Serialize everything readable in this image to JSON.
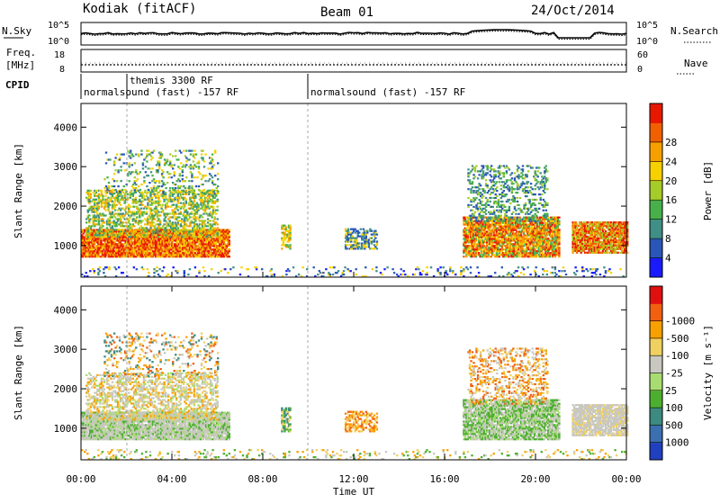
{
  "header": {
    "station": "Kodiak (fitACF)",
    "beam": "Beam 01",
    "date": "24/Oct/2014"
  },
  "top_panel": {
    "left_label": "N.Sky",
    "right_label": "N.Search",
    "left_ticks": [
      "10^5",
      "10^0"
    ],
    "right_ticks": [
      "10^5",
      "10^0"
    ]
  },
  "freq_panel": {
    "left_label_1": "Freq.",
    "left_label_2": "[MHz]",
    "right_label": "Nave",
    "left_ticks": [
      "18",
      "8"
    ],
    "right_ticks": [
      "60",
      "0"
    ]
  },
  "cpid_panel": {
    "label": "CPID",
    "modes": [
      {
        "text": "normalsound (fast) -157 RF",
        "start_hour": 0
      },
      {
        "text": "themis 3300 RF",
        "start_hour": 2
      },
      {
        "text": "normalsound (fast) -157 RF",
        "start_hour": 10
      }
    ]
  },
  "chart_data": [
    {
      "type": "heatmap",
      "ylabel": "Slant Range [km]",
      "yticks": [
        1000,
        2000,
        3000,
        4000
      ],
      "ylim": [
        200,
        4600
      ],
      "xlim": [
        0,
        24
      ],
      "colorbar": {
        "label": "Power [dB]",
        "ticks": [
          "4",
          "8",
          "12",
          "16",
          "20",
          "24",
          "28"
        ],
        "colors": [
          "#1a1aff",
          "#2956b8",
          "#3f8f86",
          "#48b04a",
          "#a6cc2a",
          "#f7d000",
          "#f6a000",
          "#f06000",
          "#e81800"
        ]
      }
    },
    {
      "type": "heatmap",
      "ylabel": "Slant Range [km]",
      "yticks": [
        1000,
        2000,
        3000,
        4000
      ],
      "ylim": [
        200,
        4600
      ],
      "xlim": [
        0,
        24
      ],
      "xlabel": "Time UT",
      "xticks": [
        "00:00",
        "04:00",
        "08:00",
        "12:00",
        "16:00",
        "20:00",
        "00:00"
      ],
      "colorbar": {
        "label": "Velocity [m s⁻¹]",
        "ticks": [
          "1000",
          "500",
          "100",
          "25",
          "-25",
          "-100",
          "-500",
          "-1000"
        ],
        "colors": [
          "#2040c0",
          "#3a70b0",
          "#3d8a80",
          "#4caf30",
          "#a8dc70",
          "#c8c8c0",
          "#f0d060",
          "#f8a000",
          "#f06010",
          "#e01010"
        ]
      }
    }
  ]
}
